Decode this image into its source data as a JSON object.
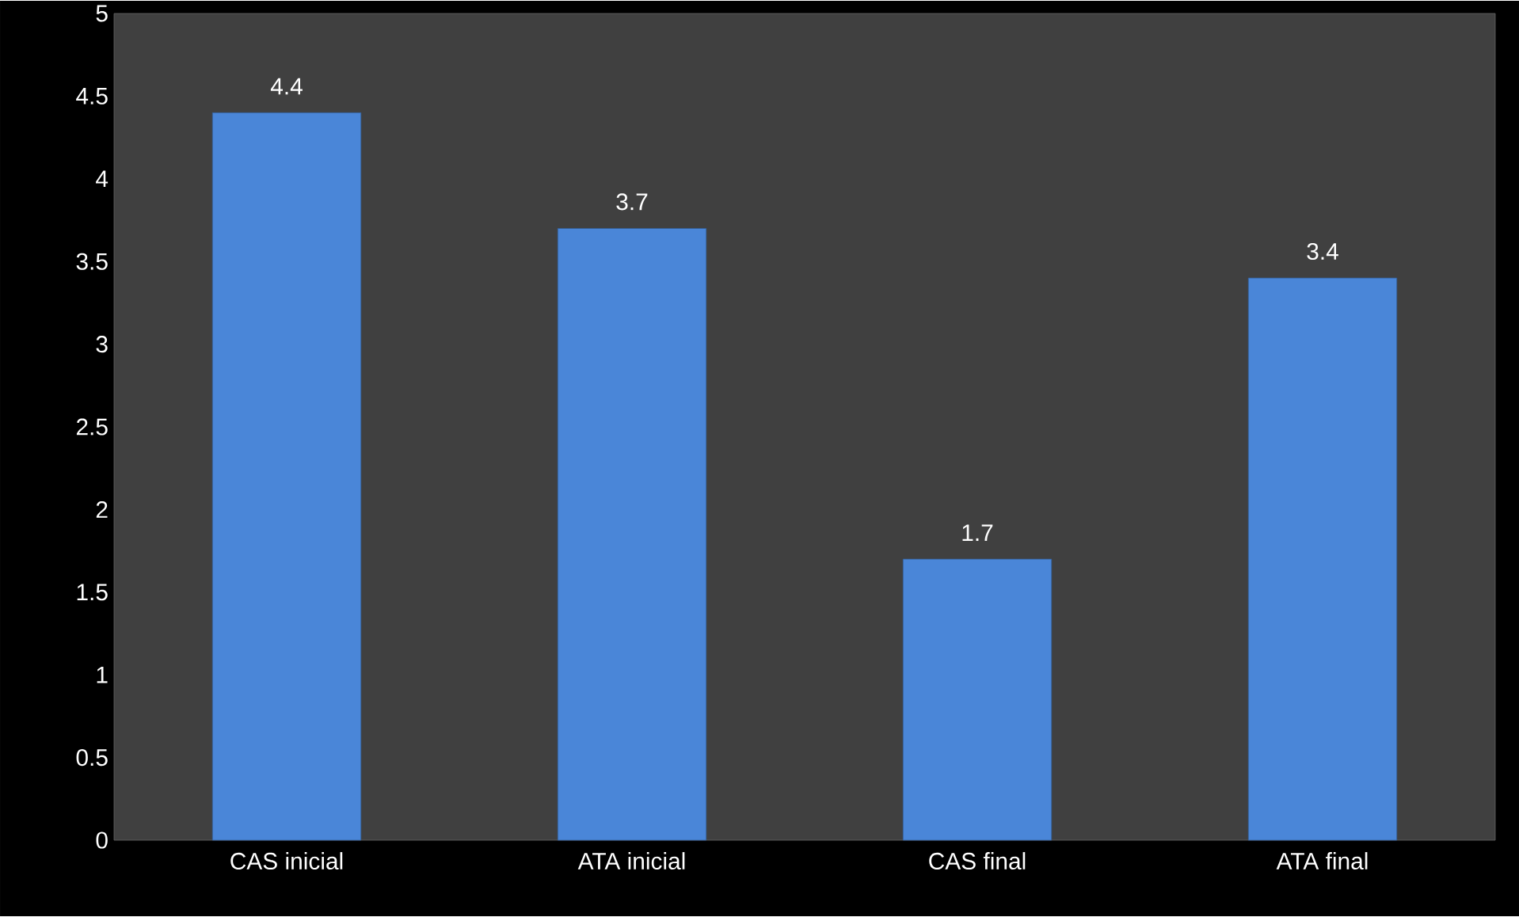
{
  "chart_data": {
    "type": "bar",
    "categories": [
      "CAS inicial",
      "ATA inicial",
      "CAS final",
      "ATA final"
    ],
    "values": [
      4.4,
      3.7,
      1.7,
      3.4
    ],
    "color": "#4a86d8",
    "ylim": [
      0,
      5
    ],
    "yticks": [
      0,
      0.5,
      1,
      1.5,
      2,
      2.5,
      3,
      3.5,
      4,
      4.5,
      5
    ],
    "grid": false,
    "data_labels": true
  }
}
